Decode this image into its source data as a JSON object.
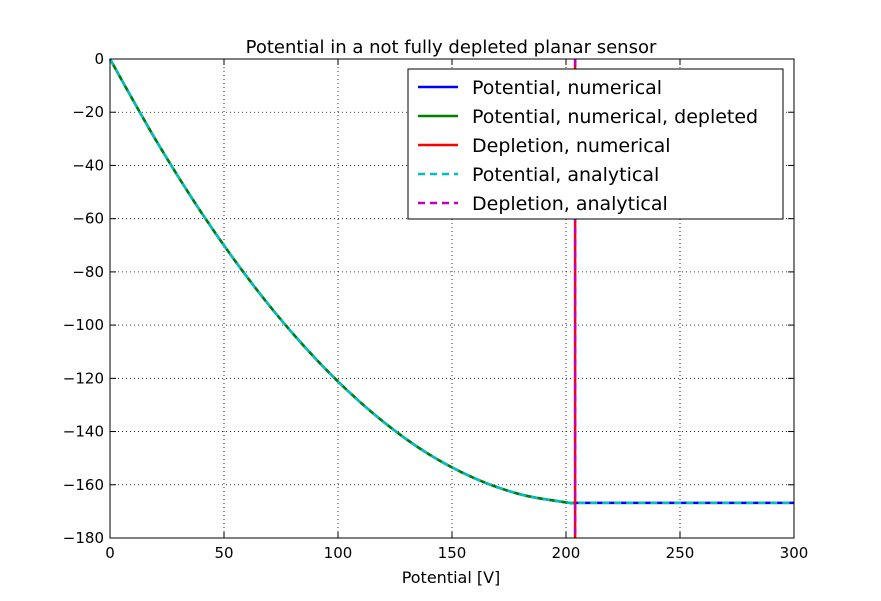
{
  "chart_data": {
    "type": "line",
    "title": "Potential in a not fully depleted planar sensor",
    "xlabel": "Potential [V]",
    "ylabel": "",
    "xlim": [
      0,
      300
    ],
    "ylim": [
      -180,
      0
    ],
    "xticks": [
      0,
      50,
      100,
      150,
      200,
      250,
      300
    ],
    "xtick_labels": [
      "0",
      "50",
      "100",
      "150",
      "200",
      "250",
      "300"
    ],
    "yticks": [
      0,
      -20,
      -40,
      -60,
      -80,
      -100,
      -120,
      -140,
      -160,
      -180
    ],
    "ytick_labels": [
      "0",
      "−20",
      "−40",
      "−60",
      "−80",
      "−100",
      "−120",
      "−140",
      "−160",
      "−180"
    ],
    "grid": true,
    "legend_position": "top-right",
    "series": [
      {
        "name": "Potential, numerical",
        "color": "#0000ff",
        "style": "solid",
        "x": [
          0,
          20,
          40,
          60,
          80,
          100,
          120,
          140,
          160,
          180,
          200,
          204,
          220,
          240,
          260,
          280,
          300
        ],
        "y": [
          0,
          -30.3,
          -57.6,
          -81.8,
          -103.0,
          -121.2,
          -136.4,
          -148.6,
          -157.6,
          -163.6,
          -166.6,
          -166.8,
          -166.8,
          -166.8,
          -166.8,
          -166.8,
          -166.8
        ]
      },
      {
        "name": "Potential, numerical, depleted",
        "color": "#008000",
        "style": "solid",
        "x": [
          0,
          20,
          40,
          60,
          80,
          100,
          120,
          140,
          160,
          180,
          200,
          204
        ],
        "y": [
          0,
          -30.3,
          -57.6,
          -81.8,
          -103.0,
          -121.2,
          -136.4,
          -148.6,
          -157.6,
          -163.6,
          -166.6,
          -166.8
        ]
      },
      {
        "name": "Depletion, numerical",
        "color": "#ff0000",
        "style": "solid",
        "x": [
          204,
          204
        ],
        "y": [
          0,
          -180
        ]
      },
      {
        "name": "Potential, analytical",
        "color": "#00bfbf",
        "style": "dashed",
        "x": [
          0,
          20,
          40,
          60,
          80,
          100,
          120,
          140,
          160,
          180,
          200,
          204,
          220,
          240,
          260,
          280,
          300
        ],
        "y": [
          0,
          -30.3,
          -57.6,
          -81.8,
          -103.0,
          -121.2,
          -136.4,
          -148.6,
          -157.6,
          -163.6,
          -166.6,
          -166.8,
          -166.8,
          -166.8,
          -166.8,
          -166.8,
          -166.8
        ]
      },
      {
        "name": "Depletion, analytical",
        "color": "#bf00bf",
        "style": "dashed",
        "x": [
          204,
          204
        ],
        "y": [
          0,
          -180
        ]
      }
    ]
  }
}
